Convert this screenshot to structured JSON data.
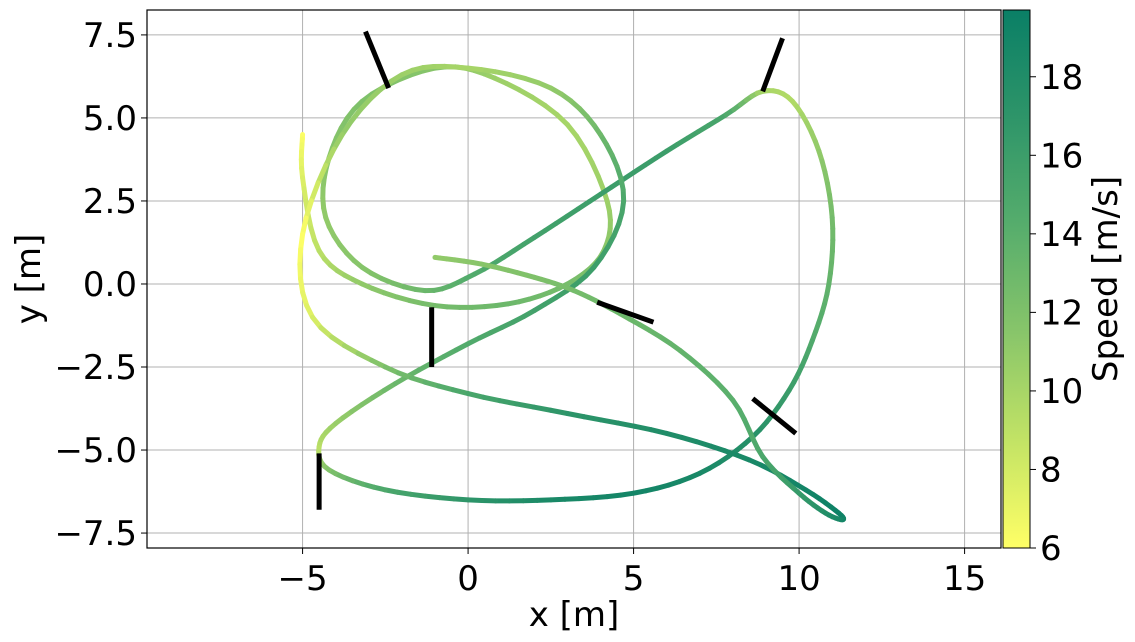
{
  "chart_data": {
    "type": "line",
    "title": "",
    "xlabel": "x [m]",
    "ylabel": "y [m]",
    "xlim": [
      -9.7,
      16.1
    ],
    "ylim": [
      -7.95,
      8.25
    ],
    "xticks": [
      -5,
      0,
      5,
      10,
      15
    ],
    "xtick_labels": [
      "−5",
      "0",
      "5",
      "10",
      "15"
    ],
    "yticks": [
      -7.5,
      -5.0,
      -2.5,
      0.0,
      2.5,
      5.0,
      7.5
    ],
    "ytick_labels": [
      "−7.5",
      "−5.0",
      "−2.5",
      "0.0",
      "2.5",
      "5.0",
      "7.5"
    ],
    "grid": true,
    "colorbar": {
      "label": "Speed [m/s]",
      "range": [
        6,
        19.7
      ],
      "ticks": [
        6,
        8,
        10,
        12,
        14,
        16,
        18
      ],
      "tick_labels": [
        "6",
        "8",
        "10",
        "12",
        "14",
        "16",
        "18"
      ],
      "colormap_stops": [
        "#ffff66",
        "#c2e365",
        "#88c56a",
        "#56ad6c",
        "#2e9569",
        "#0a7f66"
      ]
    },
    "trajectory": {
      "x": [
        -5.0,
        -5.0,
        -4.5,
        -3.2,
        -1.0,
        1.2,
        3.0,
        4.1,
        4.2,
        3.0,
        0.8,
        -1.0,
        -3.2,
        -4.2,
        -4.3,
        -3.2,
        -1.3,
        0.2,
        2.0,
        4.0,
        6.0,
        7.8,
        8.9,
        9.8,
        10.6,
        11.0,
        10.9,
        10.4,
        9.7,
        8.6,
        7.0,
        5.0,
        2.5,
        0.0,
        -2.5,
        -4.2,
        -4.5,
        -4.0,
        -2.2,
        0.0,
        2.0,
        3.8,
        4.7,
        4.0,
        2.5,
        0.0,
        -2.0,
        -3.8,
        -5.0,
        -4.7,
        -2.5,
        0.0,
        3.0,
        6.0,
        8.5,
        10.2,
        11.2,
        11.3,
        10.8,
        10.0,
        8.9,
        8.0,
        6.4,
        4.6,
        3.2,
        2.0,
        0.4,
        -1.0
      ],
      "y": [
        4.5,
        3.2,
        1.0,
        0.0,
        -0.65,
        -0.6,
        0.0,
        1.0,
        2.5,
        4.8,
        6.2,
        6.5,
        5.5,
        3.8,
        2.0,
        0.5,
        -0.2,
        0.3,
        1.4,
        2.7,
        4.0,
        5.1,
        5.8,
        5.5,
        4.0,
        2.0,
        0.0,
        -1.7,
        -3.2,
        -4.6,
        -5.7,
        -6.3,
        -6.5,
        -6.5,
        -6.2,
        -5.6,
        -4.9,
        -4.2,
        -3.0,
        -1.8,
        -0.8,
        0.5,
        2.5,
        4.5,
        5.9,
        6.5,
        6.3,
        4.5,
        1.5,
        -1.0,
        -2.5,
        -3.3,
        -3.9,
        -4.5,
        -5.3,
        -6.2,
        -6.9,
        -7.1,
        -6.9,
        -6.3,
        -5.2,
        -3.5,
        -2.0,
        -0.9,
        -0.2,
        0.2,
        0.6,
        0.8
      ],
      "speed": [
        6.0,
        7.5,
        9.0,
        11.0,
        12.5,
        13.0,
        12.5,
        11.5,
        10.5,
        10.0,
        10.5,
        11.5,
        12.0,
        11.5,
        11.0,
        11.5,
        13.0,
        14.5,
        15.5,
        16.0,
        16.0,
        15.0,
        10.0,
        9.5,
        11.0,
        12.5,
        13.5,
        14.5,
        16.0,
        17.5,
        18.5,
        19.0,
        18.5,
        17.0,
        15.0,
        12.0,
        9.0,
        10.5,
        13.0,
        14.5,
        15.5,
        16.0,
        15.0,
        13.0,
        11.0,
        10.0,
        10.5,
        11.0,
        6.0,
        7.5,
        12.0,
        15.0,
        17.0,
        18.0,
        18.5,
        19.0,
        19.5,
        19.0,
        18.0,
        16.5,
        15.0,
        14.0,
        13.5,
        13.0,
        12.5,
        12.0,
        11.5,
        11.0
      ],
      "stroke_color_by": "speed"
    },
    "markers": [
      {
        "x": [
          -3.1,
          -2.4
        ],
        "y": [
          7.6,
          5.9
        ]
      },
      {
        "x": [
          9.5,
          8.9
        ],
        "y": [
          7.4,
          5.8
        ]
      },
      {
        "x": [
          -1.1,
          -1.1
        ],
        "y": [
          -0.7,
          -2.5
        ]
      },
      {
        "x": [
          3.9,
          5.6
        ],
        "y": [
          -0.55,
          -1.15
        ]
      },
      {
        "x": [
          8.6,
          9.9
        ],
        "y": [
          -3.45,
          -4.5
        ]
      },
      {
        "x": [
          -4.5,
          -4.5
        ],
        "y": [
          -5.1,
          -6.8
        ]
      }
    ]
  }
}
